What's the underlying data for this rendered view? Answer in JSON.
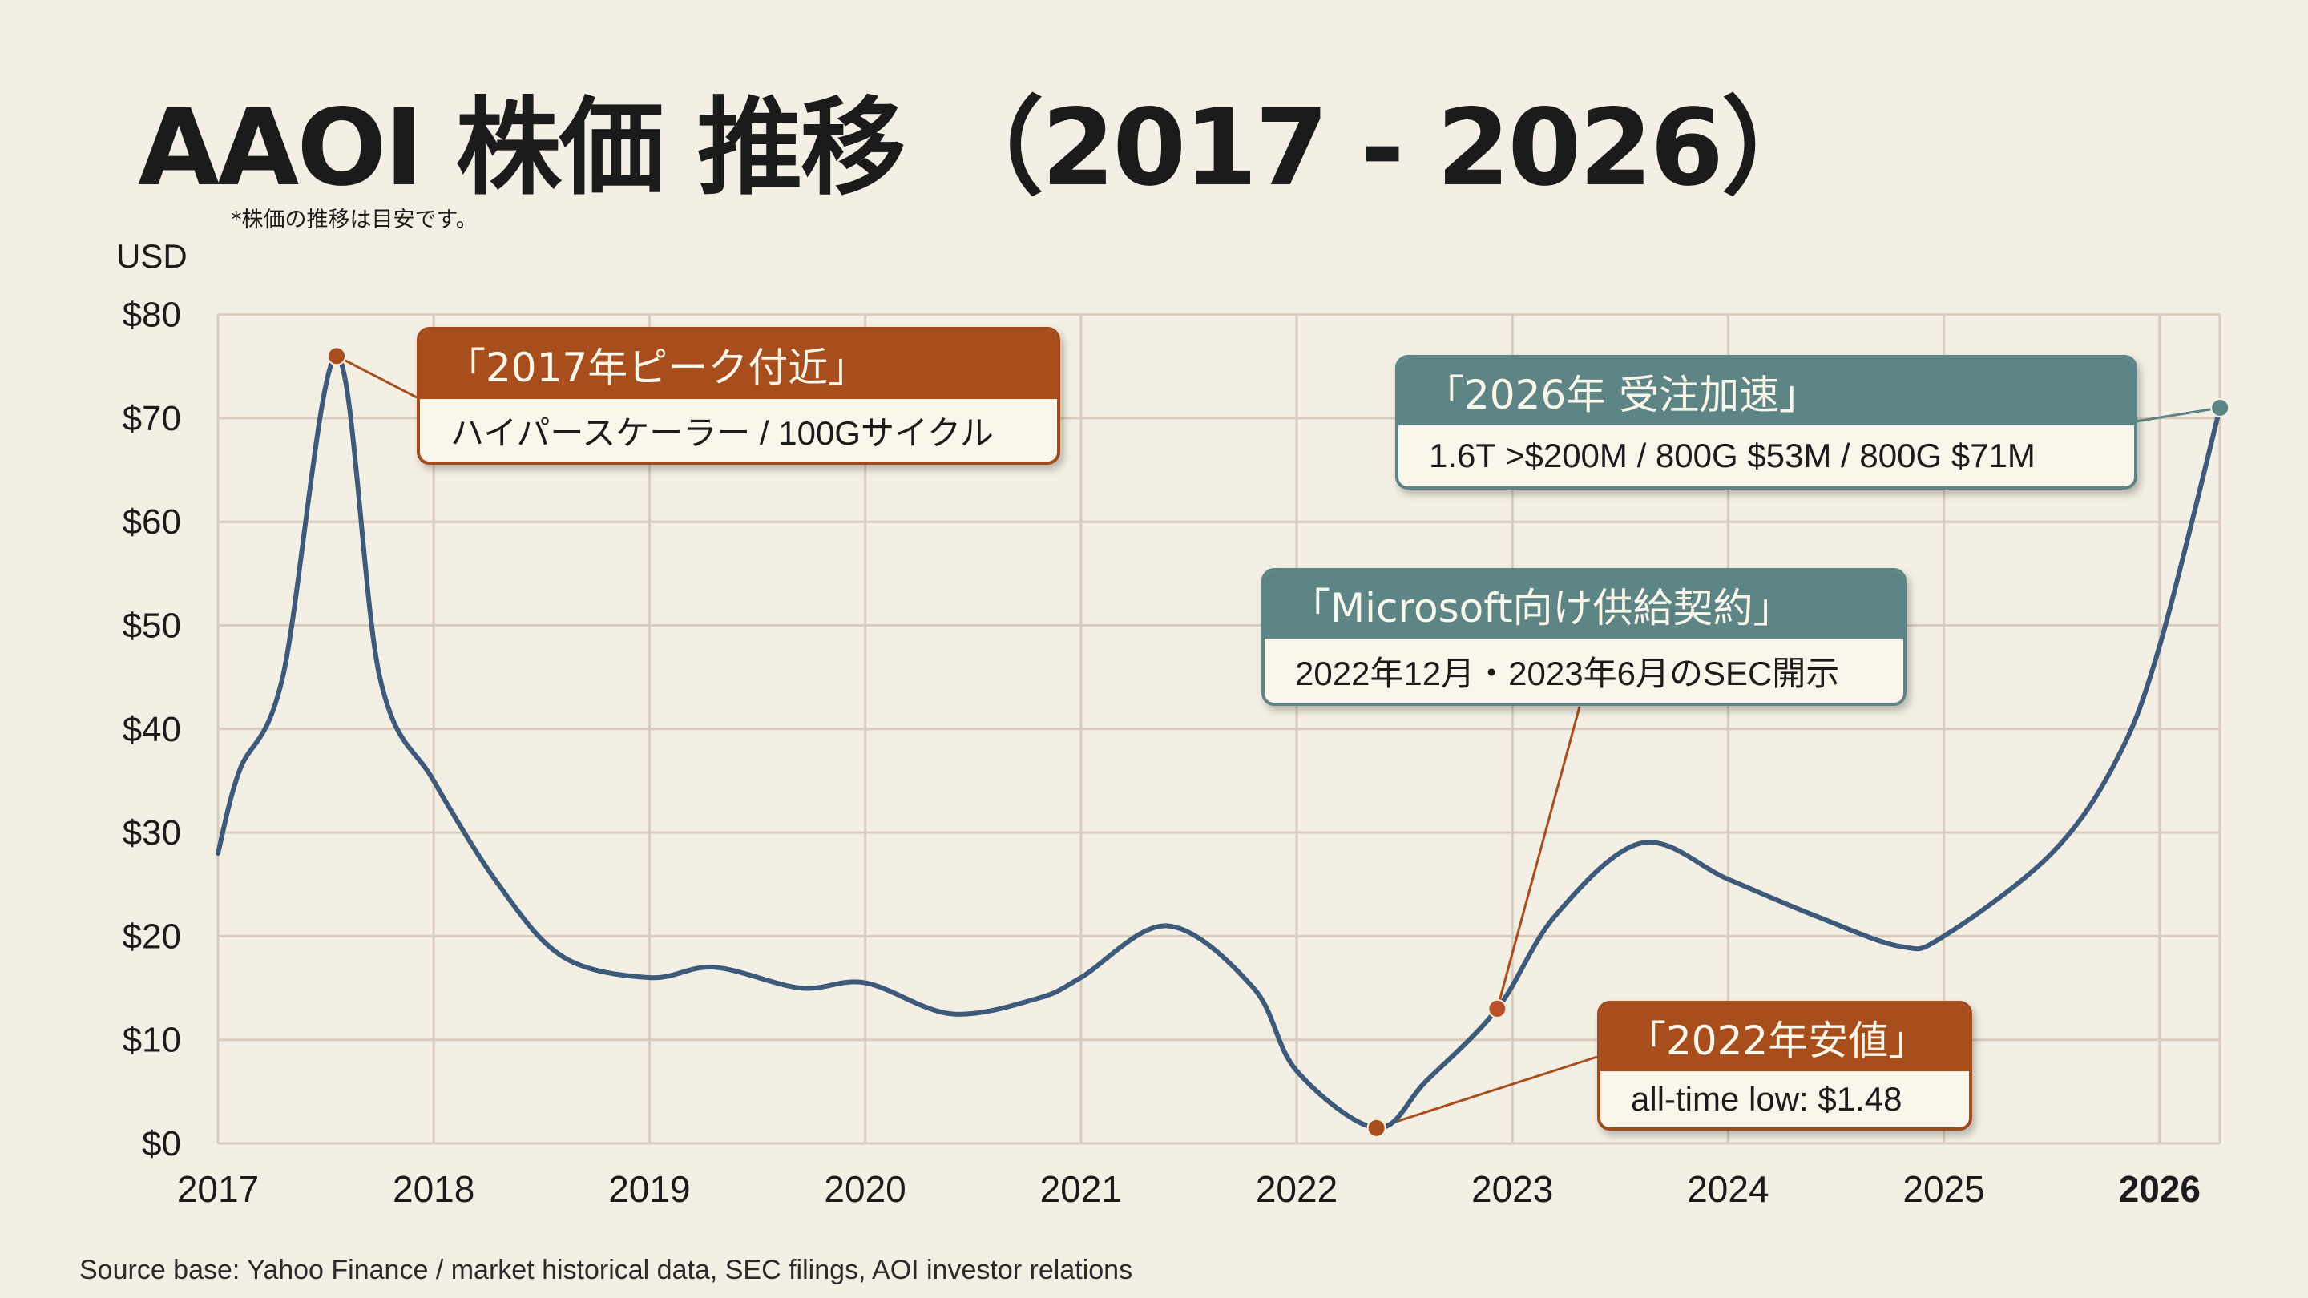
{
  "title": "AAOI 株価 推移 （2017 - 2026）",
  "note": "*株価の推移は目安です。",
  "source": "Source base: Yahoo Finance / market historical data, SEC filings, AOI investor relations",
  "colors": {
    "background": "#f3efe4",
    "line": "#3d5a7a",
    "grid": "#d9ccbd",
    "orange": "#a84e1c",
    "teal": "#5e8586"
  },
  "annotations": [
    {
      "title": "「2017年ピーク付近」",
      "body": "ハイパースケーラー / 100Gサイクル",
      "x": 2017.55,
      "y": 76,
      "color": "orange"
    },
    {
      "title": "「2026年 受注加速」",
      "body": "1.6T >$200M  /  800G $53M / 800G $71M",
      "x": 2026.28,
      "y": 71,
      "color": "teal"
    },
    {
      "title": "「Microsoft向け供給契約」",
      "body": "2022年12月・2023年6月のSEC開示",
      "x": 2022.93,
      "y": 13,
      "color": "orange"
    },
    {
      "title": "「2022年安値」",
      "body": "all-time low: $1.48",
      "x": 2022.37,
      "y": 1.48,
      "color": "orange"
    }
  ],
  "chart_data": {
    "type": "line",
    "title": "AAOI 株価 推移 （2017 - 2026）",
    "xlabel": "",
    "ylabel": "USD",
    "xlim": [
      2017,
      2026.3
    ],
    "ylim": [
      0,
      80
    ],
    "grid": true,
    "x_ticks": [
      "2017",
      "2018",
      "2019",
      "2020",
      "2021",
      "2022",
      "2023",
      "2024",
      "2025",
      "2026"
    ],
    "y_ticks": [
      "$0",
      "$10",
      "$20",
      "$30",
      "$40",
      "$50",
      "$60",
      "$70",
      "$80"
    ],
    "series": [
      {
        "name": "AAOI",
        "x": [
          2017.0,
          2017.1,
          2017.3,
          2017.55,
          2017.75,
          2018.0,
          2018.3,
          2018.6,
          2019.0,
          2019.3,
          2019.7,
          2020.0,
          2020.4,
          2020.8,
          2021.0,
          2021.4,
          2021.8,
          2022.0,
          2022.37,
          2022.6,
          2022.93,
          2023.2,
          2023.6,
          2024.0,
          2024.4,
          2024.8,
          2025.0,
          2025.5,
          2025.8,
          2026.0,
          2026.28
        ],
        "y": [
          28,
          36,
          45,
          76,
          45,
          35,
          25,
          18,
          16,
          17,
          15,
          15.5,
          12.5,
          14,
          16,
          21,
          15,
          7,
          1.5,
          6,
          13,
          22,
          29,
          25.5,
          22,
          19,
          20,
          28,
          37,
          48,
          71
        ]
      }
    ]
  }
}
